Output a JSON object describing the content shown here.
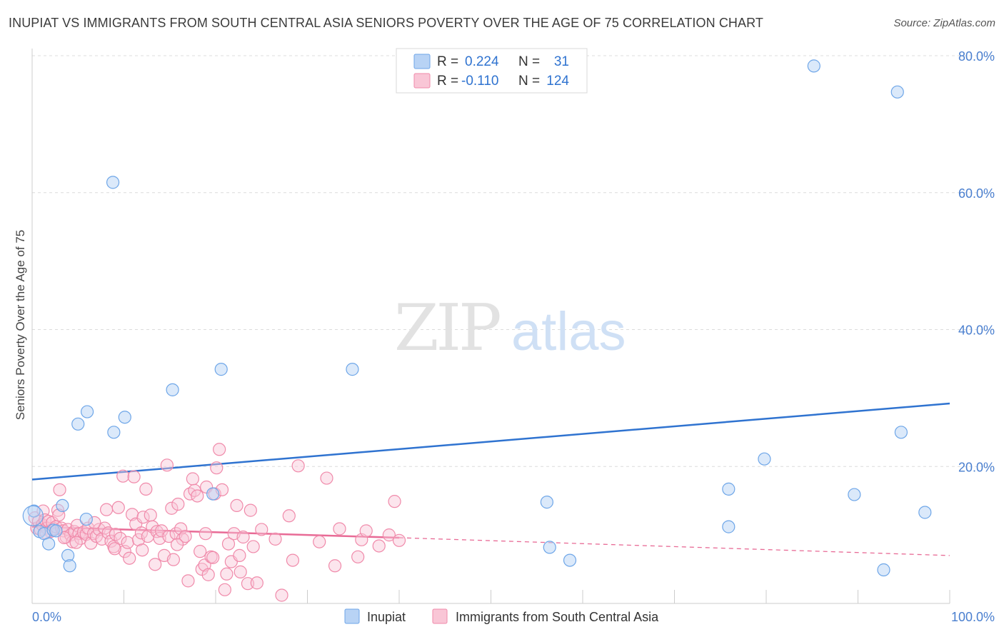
{
  "title": "INUPIAT VS IMMIGRANTS FROM SOUTH CENTRAL ASIA SENIORS POVERTY OVER THE AGE OF 75 CORRELATION CHART",
  "source": "Source: ZipAtlas.com",
  "watermark": {
    "zip": "ZIP",
    "atlas": "atlas"
  },
  "colors": {
    "inupiat": "#6ea6e8",
    "inupiat_fill": "#b8d3f5",
    "inupiat_line": "#2f73d0",
    "immigrants": "#f08aaa",
    "immigrants_fill": "#f9c6d6",
    "immigrants_line": "#e86b96",
    "axis_text": "#4a7fcf",
    "grid": "#dcdcdc"
  },
  "legend": {
    "r_label": "R =",
    "n_label": "N =",
    "rows": [
      {
        "r": "0.224",
        "n": "31"
      },
      {
        "r": "-0.110",
        "n": "124"
      }
    ]
  },
  "bottom_legend": [
    "Inupiat",
    "Immigrants from South Central Asia"
  ],
  "chart_data": {
    "type": "scatter",
    "title": "INUPIAT VS IMMIGRANTS FROM SOUTH CENTRAL ASIA SENIORS POVERTY OVER THE AGE OF 75 CORRELATION CHART",
    "xlabel": "",
    "ylabel": "Seniors Poverty Over the Age of 75",
    "xlim": [
      0,
      100
    ],
    "ylim": [
      0,
      80
    ],
    "x_tick_labels": [
      "0.0%",
      "100.0%"
    ],
    "y_ticks": [
      20,
      40,
      60,
      80
    ],
    "y_tick_labels": [
      "20.0%",
      "40.0%",
      "60.0%",
      "80.0%"
    ],
    "series": [
      {
        "name": "Inupiat",
        "r": 0.224,
        "n": 31,
        "trend": {
          "x": [
            0,
            100
          ],
          "y": [
            18.1,
            29.2
          ]
        },
        "points": [
          [
            0.2,
            13.5
          ],
          [
            0.8,
            10.5
          ],
          [
            1.3,
            10.2
          ],
          [
            1.8,
            8.7
          ],
          [
            2.3,
            10.7
          ],
          [
            2.6,
            10.6
          ],
          [
            3.3,
            14.3
          ],
          [
            3.9,
            7.0
          ],
          [
            4.1,
            5.5
          ],
          [
            5.0,
            26.2
          ],
          [
            6.0,
            28.0
          ],
          [
            5.9,
            12.3
          ],
          [
            8.8,
            61.5
          ],
          [
            8.9,
            25.0
          ],
          [
            10.1,
            27.2
          ],
          [
            15.3,
            31.2
          ],
          [
            19.7,
            16.0
          ],
          [
            20.6,
            34.2
          ],
          [
            34.9,
            34.2
          ],
          [
            56.1,
            14.8
          ],
          [
            56.4,
            8.2
          ],
          [
            58.6,
            6.3
          ],
          [
            75.9,
            11.2
          ],
          [
            75.9,
            16.7
          ],
          [
            79.8,
            21.1
          ],
          [
            85.2,
            78.5
          ],
          [
            89.6,
            15.9
          ],
          [
            94.3,
            74.7
          ],
          [
            92.8,
            4.9
          ],
          [
            94.7,
            25.0
          ],
          [
            97.3,
            13.3
          ]
        ]
      },
      {
        "name": "Immigrants from South Central Asia",
        "r": -0.11,
        "n": 124,
        "trend": {
          "x": [
            0,
            40
          ],
          "y": [
            11.2,
            9.6
          ]
        },
        "trend_extension": {
          "x": [
            40,
            100
          ],
          "y": [
            9.6,
            7.0
          ]
        },
        "points": [
          [
            0.3,
            12.5
          ],
          [
            0.5,
            11.0
          ],
          [
            0.7,
            12.0
          ],
          [
            0.9,
            10.8
          ],
          [
            1.1,
            11.5
          ],
          [
            1.2,
            13.5
          ],
          [
            1.4,
            12.2
          ],
          [
            1.6,
            11.0
          ],
          [
            1.8,
            12.0
          ],
          [
            2.0,
            10.5
          ],
          [
            2.2,
            11.8
          ],
          [
            2.4,
            10.9
          ],
          [
            2.6,
            11.2
          ],
          [
            2.8,
            13.6
          ],
          [
            3.0,
            16.6
          ],
          [
            3.2,
            11.0
          ],
          [
            3.4,
            10.6
          ],
          [
            3.7,
            9.7
          ],
          [
            3.9,
            10.8
          ],
          [
            4.2,
            10.0
          ],
          [
            4.4,
            9.0
          ],
          [
            4.6,
            10.5
          ],
          [
            4.9,
            11.4
          ],
          [
            5.1,
            10.2
          ],
          [
            5.3,
            9.5
          ],
          [
            5.6,
            10.4
          ],
          [
            5.9,
            10.1
          ],
          [
            6.1,
            11.0
          ],
          [
            6.4,
            8.8
          ],
          [
            6.7,
            10.2
          ],
          [
            7.0,
            9.8
          ],
          [
            7.3,
            10.8
          ],
          [
            7.6,
            9.4
          ],
          [
            7.9,
            11.0
          ],
          [
            8.1,
            13.7
          ],
          [
            8.3,
            10.3
          ],
          [
            8.6,
            9.1
          ],
          [
            8.9,
            8.3
          ],
          [
            9.1,
            10.1
          ],
          [
            9.4,
            14.0
          ],
          [
            9.6,
            9.5
          ],
          [
            9.9,
            18.6
          ],
          [
            10.1,
            7.6
          ],
          [
            10.4,
            8.9
          ],
          [
            10.6,
            6.6
          ],
          [
            10.9,
            13.0
          ],
          [
            11.1,
            18.5
          ],
          [
            11.3,
            11.6
          ],
          [
            11.6,
            9.3
          ],
          [
            11.9,
            10.3
          ],
          [
            12.1,
            12.6
          ],
          [
            12.4,
            16.7
          ],
          [
            12.6,
            9.8
          ],
          [
            12.9,
            12.9
          ],
          [
            13.1,
            11.2
          ],
          [
            13.4,
            5.7
          ],
          [
            13.6,
            10.5
          ],
          [
            13.9,
            9.5
          ],
          [
            14.1,
            10.6
          ],
          [
            14.4,
            7.0
          ],
          [
            14.7,
            20.2
          ],
          [
            14.9,
            9.8
          ],
          [
            15.2,
            13.9
          ],
          [
            15.4,
            6.4
          ],
          [
            15.7,
            10.2
          ],
          [
            15.9,
            14.5
          ],
          [
            16.2,
            10.9
          ],
          [
            16.4,
            9.4
          ],
          [
            16.7,
            9.8
          ],
          [
            17.0,
            3.3
          ],
          [
            17.2,
            16.0
          ],
          [
            17.5,
            18.2
          ],
          [
            17.7,
            16.5
          ],
          [
            18.0,
            15.7
          ],
          [
            18.3,
            7.6
          ],
          [
            18.5,
            5.0
          ],
          [
            18.8,
            5.6
          ],
          [
            19.0,
            17.0
          ],
          [
            19.2,
            4.2
          ],
          [
            19.5,
            6.8
          ],
          [
            19.7,
            6.7
          ],
          [
            19.9,
            16.0
          ],
          [
            20.1,
            19.8
          ],
          [
            20.4,
            22.5
          ],
          [
            20.7,
            16.6
          ],
          [
            21.0,
            2.0
          ],
          [
            21.2,
            4.3
          ],
          [
            21.4,
            8.7
          ],
          [
            21.7,
            6.1
          ],
          [
            22.0,
            10.2
          ],
          [
            22.3,
            14.3
          ],
          [
            22.6,
            7.0
          ],
          [
            23.0,
            9.7
          ],
          [
            23.5,
            2.9
          ],
          [
            23.8,
            13.6
          ],
          [
            24.1,
            8.3
          ],
          [
            24.5,
            3.0
          ],
          [
            25.0,
            10.8
          ],
          [
            26.5,
            9.4
          ],
          [
            27.2,
            1.2
          ],
          [
            28.0,
            12.8
          ],
          [
            28.4,
            6.3
          ],
          [
            29.0,
            20.1
          ],
          [
            31.3,
            9.0
          ],
          [
            32.1,
            18.3
          ],
          [
            33.0,
            5.5
          ],
          [
            33.5,
            10.9
          ],
          [
            35.5,
            6.8
          ],
          [
            35.9,
            9.3
          ],
          [
            36.4,
            10.6
          ],
          [
            37.8,
            8.4
          ],
          [
            38.9,
            10.0
          ],
          [
            39.5,
            14.9
          ],
          [
            40.0,
            9.2
          ],
          [
            9.0,
            8.0
          ],
          [
            6.8,
            11.8
          ],
          [
            4.8,
            8.9
          ],
          [
            3.5,
            9.6
          ],
          [
            2.9,
            12.9
          ],
          [
            1.5,
            10.3
          ],
          [
            12.0,
            7.8
          ],
          [
            15.8,
            8.6
          ],
          [
            18.9,
            10.2
          ],
          [
            22.7,
            4.6
          ]
        ]
      }
    ]
  }
}
